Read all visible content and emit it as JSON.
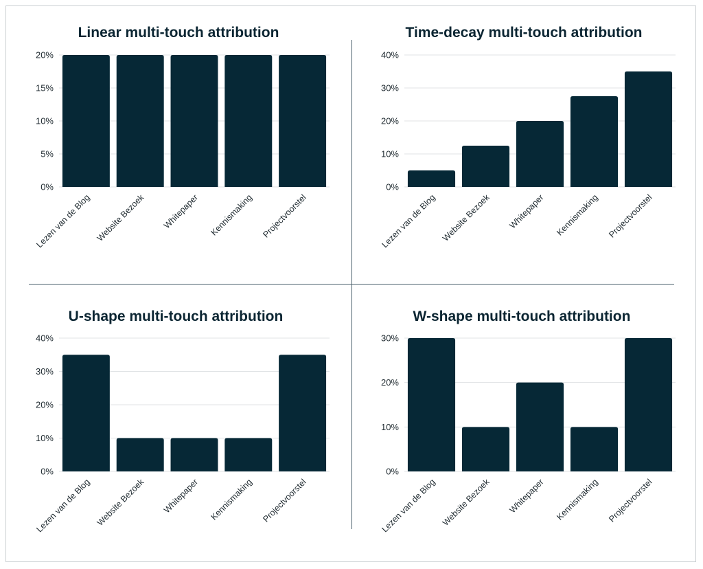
{
  "colors": {
    "bar": "#062836",
    "grid": "#e0e3e5",
    "divider": "#4a5f6b",
    "text": "#1f2a30"
  },
  "chart_data": [
    {
      "type": "bar",
      "title": "Linear multi-touch attribution",
      "categories": [
        "Lezen van de Blog",
        "Website Bezoek",
        "Whitepaper",
        "Kennismaking",
        "Projectvoorstel"
      ],
      "values": [
        20,
        20,
        20,
        20,
        20
      ],
      "yticks": [
        "0%",
        "5%",
        "10%",
        "15%",
        "20%"
      ],
      "ylim": [
        0,
        20
      ],
      "xlabel": "",
      "ylabel": "",
      "grid": true
    },
    {
      "type": "bar",
      "title": "Time-decay multi-touch attribution",
      "categories": [
        "Lezen van de Blog",
        "Website Bezoek",
        "Whitepaper",
        "Kennismaking",
        "Projectvoorstel"
      ],
      "values": [
        5,
        12.5,
        20,
        27.5,
        35
      ],
      "yticks": [
        "0%",
        "10%",
        "20%",
        "30%",
        "40%"
      ],
      "ylim": [
        0,
        40
      ],
      "xlabel": "",
      "ylabel": "",
      "grid": true
    },
    {
      "type": "bar",
      "title": "U-shape multi-touch attribution",
      "categories": [
        "Lezen van de Blog",
        "Website Bezoek",
        "Whitepaper",
        "Kennismaking",
        "Projectvoorstel"
      ],
      "values": [
        35,
        10,
        10,
        10,
        35
      ],
      "yticks": [
        "0%",
        "10%",
        "20%",
        "30%",
        "40%"
      ],
      "ylim": [
        0,
        40
      ],
      "xlabel": "",
      "ylabel": "",
      "grid": true
    },
    {
      "type": "bar",
      "title": "W-shape multi-touch attribution",
      "categories": [
        "Lezen van de Blog",
        "Website Bezoek",
        "Whitepaper",
        "Kennismaking",
        "Projectvoorstel"
      ],
      "values": [
        30,
        10,
        20,
        10,
        30
      ],
      "yticks": [
        "0%",
        "10%",
        "20%",
        "30%"
      ],
      "ylim": [
        0,
        30
      ],
      "xlabel": "",
      "ylabel": "",
      "grid": true
    }
  ]
}
